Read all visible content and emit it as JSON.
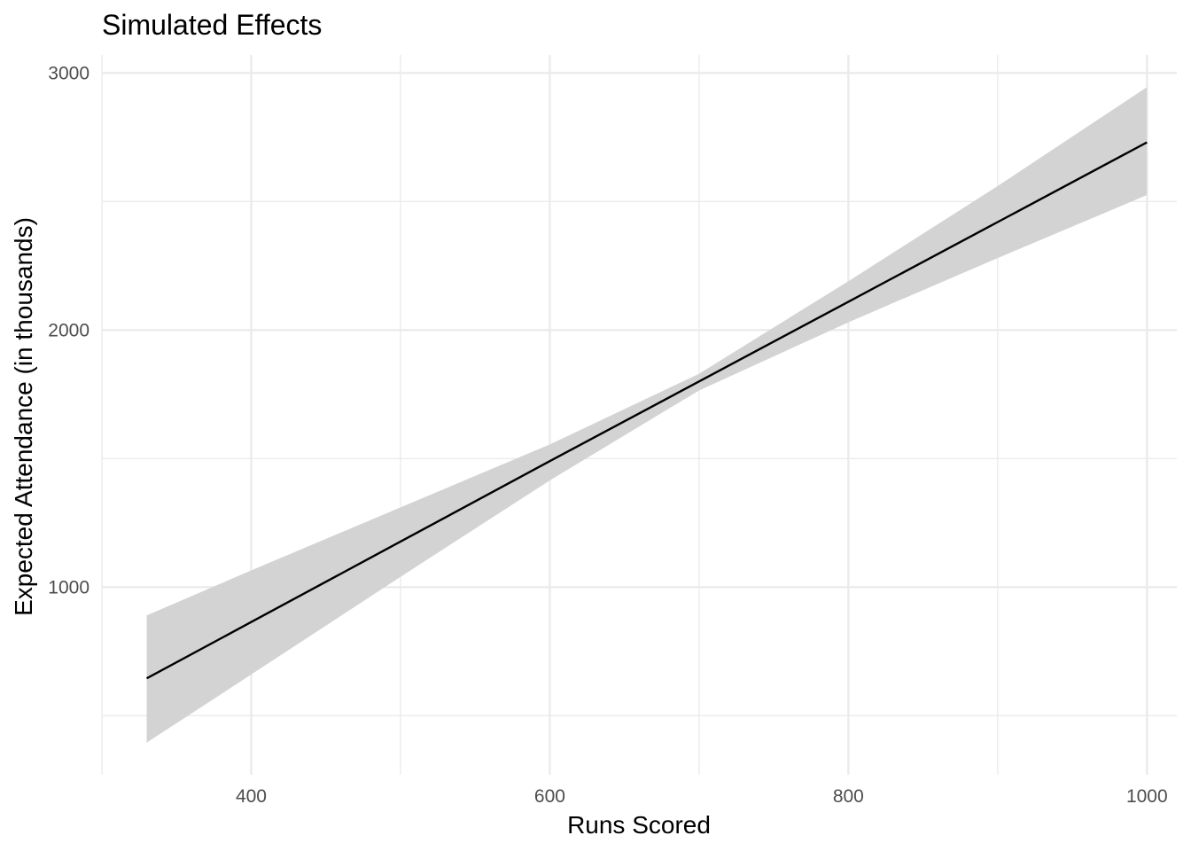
{
  "chart_data": {
    "type": "line",
    "title": "Simulated Effects",
    "xlabel": "Runs Scored",
    "ylabel": "Expected Attendance (in thousands)",
    "xlim": [
      300,
      1020
    ],
    "ylim": [
      270,
      3070
    ],
    "x_ticks": [
      400,
      600,
      800,
      1000
    ],
    "x_tick_labels": [
      "400",
      "600",
      "800",
      "1000"
    ],
    "x_minor_ticks": [
      300,
      500,
      700,
      900
    ],
    "y_ticks": [
      1000,
      2000,
      3000
    ],
    "y_tick_labels": [
      "1000",
      "2000",
      "3000"
    ],
    "y_minor_ticks": [
      500,
      1500,
      2500
    ],
    "grid": true,
    "legend": "none",
    "series": [
      {
        "line_color": "#000000",
        "ribbon_color": "#d3d3d3",
        "x": [
          330,
          400,
          500,
          600,
          700,
          800,
          900,
          1000
        ],
        "y": [
          645,
          864,
          1177,
          1490,
          1800,
          2110,
          2420,
          2730
        ],
        "lower": [
          395,
          660,
          1040,
          1415,
          1765,
          2030,
          2280,
          2525
        ],
        "upper": [
          890,
          1065,
          1310,
          1555,
          1830,
          2190,
          2560,
          2945
        ]
      }
    ]
  }
}
